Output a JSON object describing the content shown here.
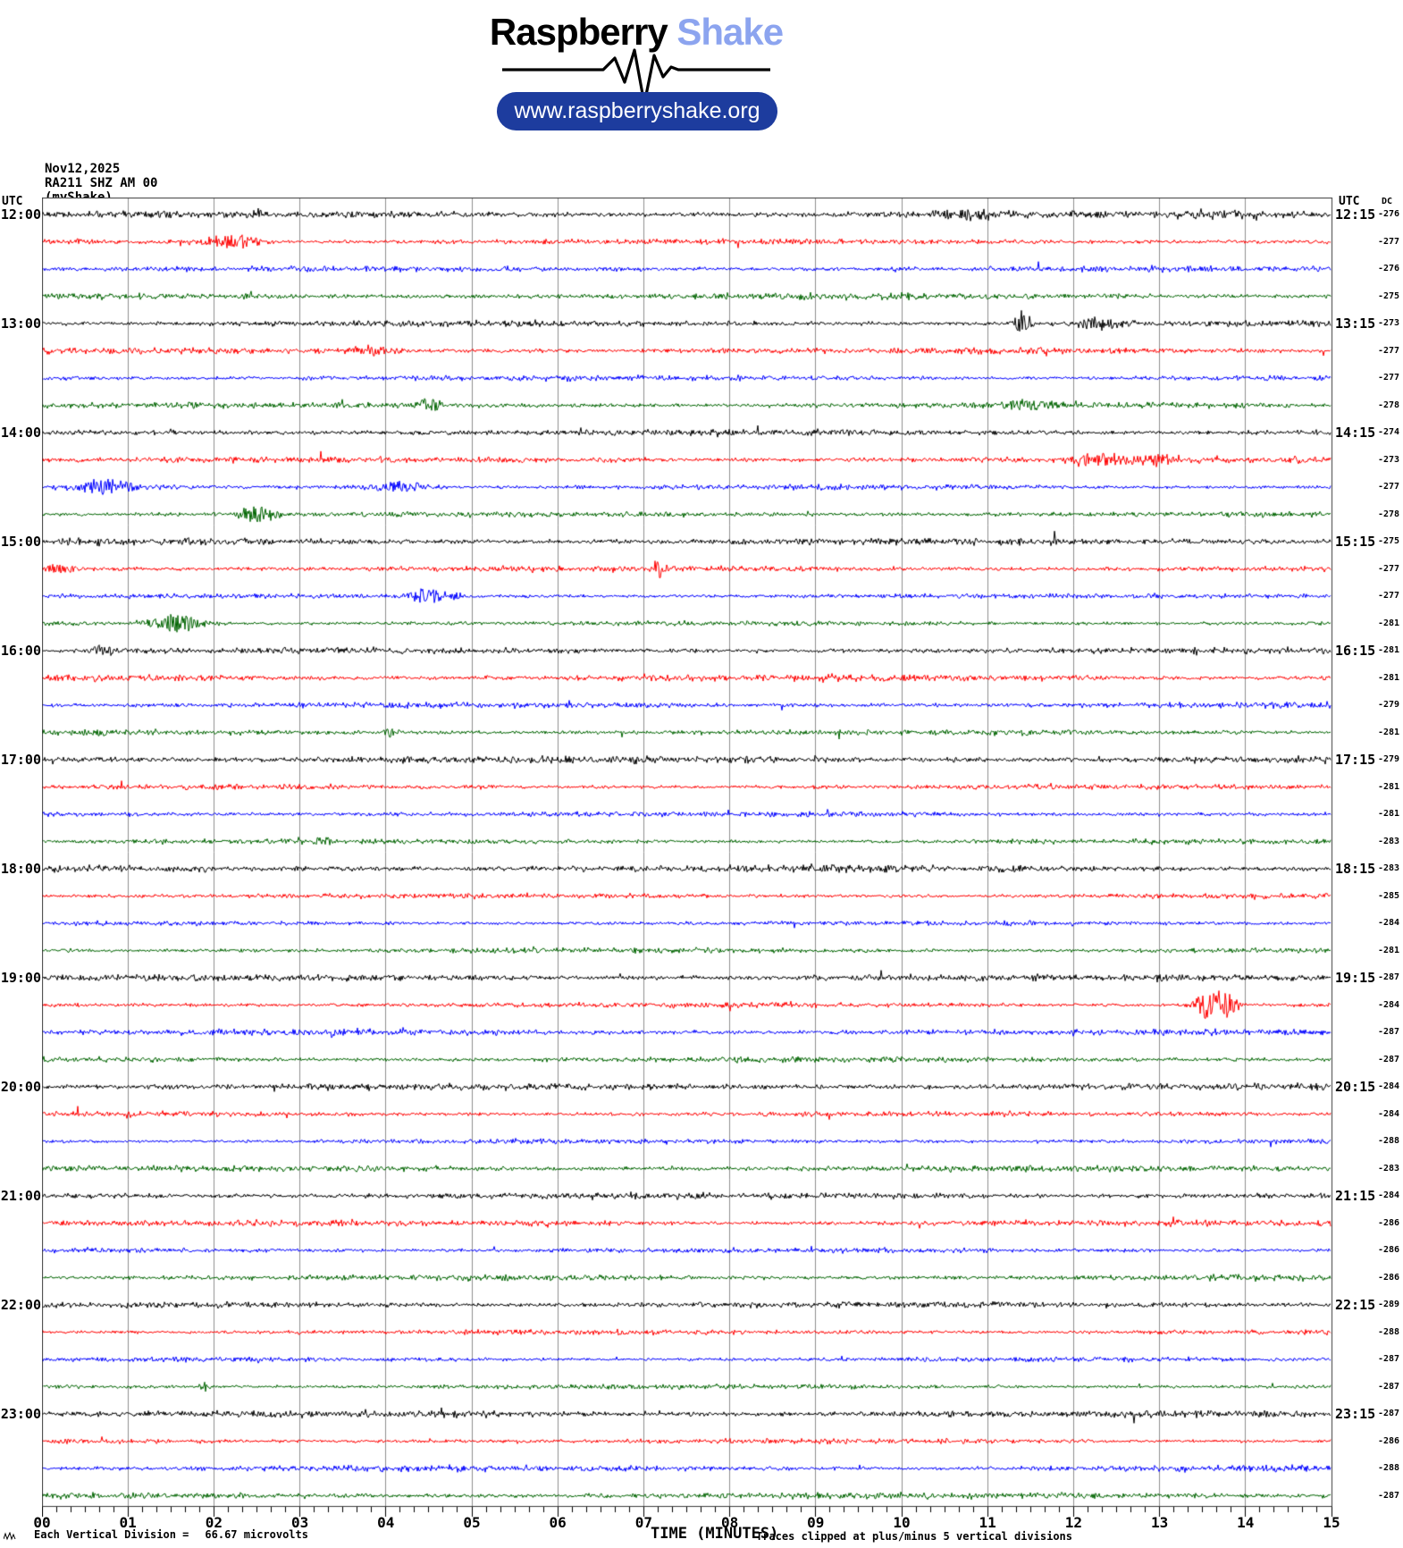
{
  "header": {
    "brand_primary": "Raspberry",
    "brand_secondary": "Shake",
    "url_label": "www.raspberryshake.org",
    "accent_color": "#8ca4ef",
    "pill_color": "#1d3c9e"
  },
  "station": {
    "date": "Nov12,2025",
    "id": "RA211 SHZ AM 00",
    "network": "(myShake)"
  },
  "axes": {
    "left_utc_label": "UTC",
    "right_utc_label": "UTC",
    "dc_label": "DC",
    "left_times": [
      "12:00",
      "13:00",
      "14:00",
      "15:00",
      "16:00",
      "17:00",
      "18:00",
      "19:00",
      "20:00",
      "21:00",
      "22:00",
      "23:00"
    ],
    "right_times": [
      "12:15",
      "13:15",
      "14:15",
      "15:15",
      "16:15",
      "17:15",
      "18:15",
      "19:15",
      "20:15",
      "21:15",
      "22:15",
      "23:15"
    ],
    "x_title": "TIME (MINUTES)",
    "clip_note": "Traces clipped at plus/minus 5 vertical divisions",
    "scale_note_label": "Each Vertical Division =",
    "scale_note_value": "66.67 microvolts"
  },
  "chart_data": {
    "type": "line",
    "kind": "helicorder-seismogram",
    "title": "RA211 SHZ AM 00 helicorder, Nov12,2025, 12:00-24:00 UTC",
    "xlabel": "TIME (MINUTES)",
    "x_range_minutes": [
      0,
      15
    ],
    "x_ticks": [
      "00",
      "01",
      "02",
      "03",
      "04",
      "05",
      "06",
      "07",
      "08",
      "09",
      "10",
      "11",
      "12",
      "13",
      "14",
      "15"
    ],
    "minor_ticks_per_minute": 6,
    "row_duration_minutes": 15,
    "grid": "vertical-only",
    "palette": {
      "black": "#000000",
      "red": "#ff0000",
      "blue": "#0000ff",
      "green": "#006400",
      "grid": "#8f8f8f",
      "border": "#3c3c3c"
    },
    "rows": [
      {
        "utc_start": "12:00",
        "color": "black",
        "dc": -276,
        "events": [
          {
            "minute": 10.8,
            "amp": 4.5,
            "width": 0.4
          },
          {
            "minute": 13.9,
            "amp": 3,
            "width": 0.5
          }
        ]
      },
      {
        "utc_start": "12:15",
        "color": "red",
        "dc": -277,
        "events": [
          {
            "minute": 2.2,
            "amp": 6,
            "width": 0.35
          }
        ]
      },
      {
        "utc_start": "12:30",
        "color": "blue",
        "dc": -276,
        "events": []
      },
      {
        "utc_start": "12:45",
        "color": "green",
        "dc": -275,
        "events": []
      },
      {
        "utc_start": "13:00",
        "color": "black",
        "dc": -273,
        "events": [
          {
            "minute": 11.4,
            "amp": 11,
            "width": 0.09
          },
          {
            "minute": 12.3,
            "amp": 5,
            "width": 0.35
          }
        ]
      },
      {
        "utc_start": "13:15",
        "color": "red",
        "dc": -277,
        "events": [
          {
            "minute": 3.8,
            "amp": 4,
            "width": 0.3
          }
        ]
      },
      {
        "utc_start": "13:30",
        "color": "blue",
        "dc": -277,
        "events": []
      },
      {
        "utc_start": "13:45",
        "color": "green",
        "dc": -278,
        "events": [
          {
            "minute": 4.5,
            "amp": 8,
            "width": 0.12
          },
          {
            "minute": 11.5,
            "amp": 4,
            "width": 0.45
          }
        ]
      },
      {
        "utc_start": "14:00",
        "color": "black",
        "dc": -274,
        "events": []
      },
      {
        "utc_start": "14:15",
        "color": "red",
        "dc": -273,
        "events": [
          {
            "minute": 12.3,
            "amp": 6,
            "width": 0.35
          },
          {
            "minute": 12.85,
            "amp": 5,
            "width": 0.3
          }
        ]
      },
      {
        "utc_start": "14:30",
        "color": "blue",
        "dc": -277,
        "events": [
          {
            "minute": 0.75,
            "amp": 7,
            "width": 0.3
          },
          {
            "minute": 4.1,
            "amp": 4.5,
            "width": 0.4
          }
        ]
      },
      {
        "utc_start": "14:45",
        "color": "green",
        "dc": -278,
        "events": [
          {
            "minute": 2.5,
            "amp": 8,
            "width": 0.2
          }
        ]
      },
      {
        "utc_start": "15:00",
        "color": "black",
        "dc": -275,
        "events": []
      },
      {
        "utc_start": "15:15",
        "color": "red",
        "dc": -277,
        "events": [
          {
            "minute": 0.18,
            "amp": 5,
            "width": 0.15
          },
          {
            "minute": 7.17,
            "amp": 9,
            "width": 0.07
          }
        ]
      },
      {
        "utc_start": "15:30",
        "color": "blue",
        "dc": -277,
        "events": [
          {
            "minute": 4.5,
            "amp": 6,
            "width": 0.28
          }
        ]
      },
      {
        "utc_start": "15:45",
        "color": "green",
        "dc": -281,
        "events": [
          {
            "minute": 1.55,
            "amp": 8,
            "width": 0.3
          }
        ]
      },
      {
        "utc_start": "16:00",
        "color": "black",
        "dc": -281,
        "events": [
          {
            "minute": 0.7,
            "amp": 5,
            "width": 0.15
          }
        ]
      },
      {
        "utc_start": "16:15",
        "color": "red",
        "dc": -281,
        "events": []
      },
      {
        "utc_start": "16:30",
        "color": "blue",
        "dc": -279,
        "events": []
      },
      {
        "utc_start": "16:45",
        "color": "green",
        "dc": -281,
        "events": [
          {
            "minute": 4.05,
            "amp": 4,
            "width": 0.1
          }
        ]
      },
      {
        "utc_start": "17:00",
        "color": "black",
        "dc": -279,
        "events": []
      },
      {
        "utc_start": "17:15",
        "color": "red",
        "dc": -281,
        "events": []
      },
      {
        "utc_start": "17:30",
        "color": "blue",
        "dc": -281,
        "events": []
      },
      {
        "utc_start": "17:45",
        "color": "green",
        "dc": -283,
        "events": [
          {
            "minute": 3.25,
            "amp": 4.5,
            "width": 0.1
          }
        ]
      },
      {
        "utc_start": "18:00",
        "color": "black",
        "dc": -283,
        "events": []
      },
      {
        "utc_start": "18:15",
        "color": "red",
        "dc": -285,
        "events": []
      },
      {
        "utc_start": "18:30",
        "color": "blue",
        "dc": -284,
        "events": []
      },
      {
        "utc_start": "18:45",
        "color": "green",
        "dc": -281,
        "events": []
      },
      {
        "utc_start": "19:00",
        "color": "black",
        "dc": -287,
        "events": []
      },
      {
        "utc_start": "19:15",
        "color": "red",
        "dc": -284,
        "events": [
          {
            "minute": 13.55,
            "amp": 13,
            "width": 0.14
          },
          {
            "minute": 13.78,
            "amp": 11,
            "width": 0.12
          }
        ]
      },
      {
        "utc_start": "19:30",
        "color": "blue",
        "dc": -287,
        "events": []
      },
      {
        "utc_start": "19:45",
        "color": "green",
        "dc": -287,
        "events": []
      },
      {
        "utc_start": "20:00",
        "color": "black",
        "dc": -284,
        "events": []
      },
      {
        "utc_start": "20:15",
        "color": "red",
        "dc": -284,
        "events": []
      },
      {
        "utc_start": "20:30",
        "color": "blue",
        "dc": -288,
        "events": []
      },
      {
        "utc_start": "20:45",
        "color": "green",
        "dc": -283,
        "events": []
      },
      {
        "utc_start": "21:00",
        "color": "black",
        "dc": -284,
        "events": []
      },
      {
        "utc_start": "21:15",
        "color": "red",
        "dc": -286,
        "events": []
      },
      {
        "utc_start": "21:30",
        "color": "blue",
        "dc": -286,
        "events": []
      },
      {
        "utc_start": "21:45",
        "color": "green",
        "dc": -286,
        "events": []
      },
      {
        "utc_start": "22:00",
        "color": "black",
        "dc": -289,
        "events": []
      },
      {
        "utc_start": "22:15",
        "color": "red",
        "dc": -288,
        "events": []
      },
      {
        "utc_start": "22:30",
        "color": "blue",
        "dc": -287,
        "events": []
      },
      {
        "utc_start": "22:45",
        "color": "green",
        "dc": -287,
        "events": [
          {
            "minute": 1.9,
            "amp": 4.5,
            "width": 0.07
          }
        ]
      },
      {
        "utc_start": "23:00",
        "color": "black",
        "dc": -287,
        "events": []
      },
      {
        "utc_start": "23:15",
        "color": "red",
        "dc": -286,
        "events": []
      },
      {
        "utc_start": "23:30",
        "color": "blue",
        "dc": -288,
        "events": []
      },
      {
        "utc_start": "23:45",
        "color": "green",
        "dc": -287,
        "events": []
      }
    ]
  }
}
